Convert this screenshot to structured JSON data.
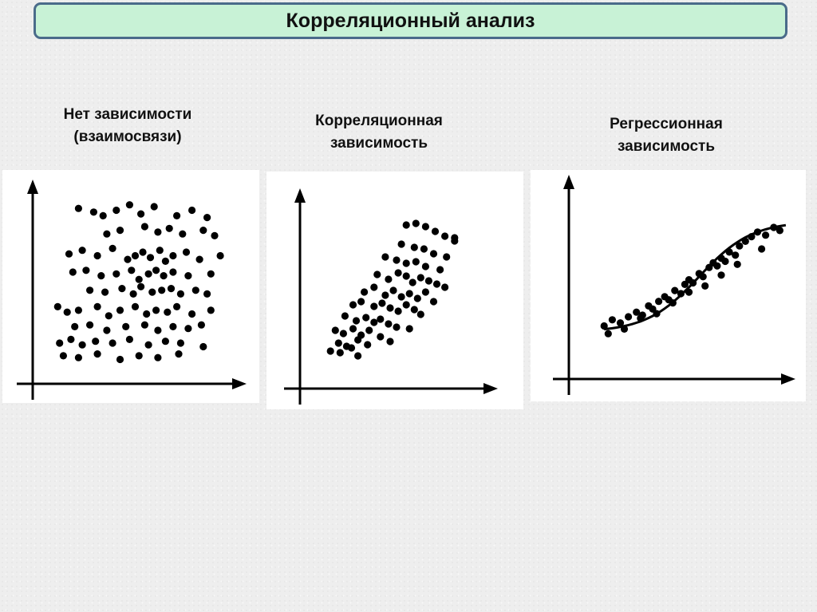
{
  "page": {
    "title": "Корреляционный анализ"
  },
  "colors": {
    "title_bg": "#c8f2d6",
    "title_border": "#4a6b8a",
    "ink": "#000000"
  },
  "chart_data": [
    {
      "type": "scatter",
      "title": "Нет зависимости\n(взаимосвязи)",
      "xlim": [
        0,
        100
      ],
      "ylim": [
        0,
        100
      ],
      "x": [
        20,
        28,
        33,
        40,
        47,
        53,
        60,
        72,
        80,
        88,
        35,
        42,
        55,
        62,
        68,
        75,
        86,
        92,
        15,
        22,
        30,
        38,
        46,
        50,
        54,
        58,
        63,
        66,
        70,
        77,
        84,
        95,
        17,
        24,
        32,
        40,
        48,
        52,
        57,
        61,
        65,
        70,
        78,
        90,
        26,
        34,
        43,
        49,
        53,
        59,
        64,
        69,
        74,
        82,
        88,
        9,
        14,
        20,
        30,
        36,
        42,
        50,
        56,
        61,
        67,
        72,
        80,
        90,
        18,
        26,
        35,
        45,
        55,
        62,
        70,
        78,
        85,
        10,
        16,
        22,
        29,
        38,
        47,
        57,
        66,
        74,
        86,
        12,
        20,
        30,
        42,
        52,
        62,
        73
      ],
      "y": [
        92,
        90,
        88,
        91,
        94,
        89,
        93,
        88,
        91,
        87,
        78,
        80,
        82,
        79,
        81,
        78,
        80,
        77,
        67,
        69,
        66,
        70,
        64,
        66,
        68,
        65,
        69,
        63,
        66,
        68,
        64,
        66,
        57,
        58,
        55,
        56,
        58,
        53,
        56,
        58,
        55,
        57,
        55,
        56,
        47,
        46,
        48,
        45,
        49,
        46,
        47,
        48,
        45,
        47,
        45,
        38,
        35,
        36,
        38,
        33,
        36,
        38,
        34,
        36,
        35,
        38,
        34,
        36,
        27,
        28,
        25,
        27,
        28,
        25,
        27,
        26,
        28,
        18,
        20,
        17,
        19,
        18,
        20,
        17,
        19,
        18,
        16,
        11,
        10,
        12,
        9,
        11,
        10,
        12
      ]
    },
    {
      "type": "scatter",
      "title": "Корреляционная\nзависимость",
      "xlim": [
        0,
        100
      ],
      "ylim": [
        0,
        100
      ],
      "x": [
        58,
        64,
        70,
        76,
        82,
        88,
        88,
        55,
        63,
        69,
        75,
        83,
        45,
        52,
        58,
        64,
        70,
        79,
        40,
        47,
        53,
        58,
        62,
        67,
        72,
        77,
        82,
        32,
        38,
        45,
        50,
        55,
        60,
        65,
        70,
        75,
        25,
        30,
        38,
        43,
        48,
        53,
        58,
        63,
        67,
        20,
        27,
        33,
        38,
        42,
        47,
        52,
        60,
        14,
        19,
        25,
        30,
        35,
        42,
        48,
        16,
        21,
        28,
        34,
        11,
        17,
        24,
        28
      ],
      "y": [
        94,
        95,
        93,
        90,
        87,
        84,
        86,
        82,
        80,
        79,
        76,
        74,
        74,
        72,
        70,
        71,
        68,
        66,
        63,
        60,
        64,
        62,
        58,
        61,
        59,
        57,
        55,
        52,
        55,
        50,
        53,
        49,
        51,
        48,
        52,
        46,
        44,
        46,
        43,
        45,
        42,
        40,
        44,
        41,
        38,
        37,
        34,
        36,
        33,
        35,
        32,
        30,
        29,
        28,
        26,
        29,
        25,
        28,
        24,
        21,
        20,
        18,
        22,
        19,
        15,
        14,
        17,
        12
      ]
    },
    {
      "type": "scatter",
      "title": "Регрессионная\nзависимость",
      "xlim": [
        0,
        100
      ],
      "ylim": [
        0,
        100
      ],
      "x": [
        8,
        12,
        16,
        20,
        24,
        27,
        30,
        32,
        35,
        38,
        40,
        43,
        46,
        48,
        50,
        52,
        55,
        57,
        60,
        62,
        64,
        66,
        68,
        70,
        73,
        75,
        78,
        81,
        84,
        88,
        92,
        95,
        10,
        18,
        26,
        34,
        42,
        50,
        58,
        66,
        74,
        86
      ],
      "y": [
        22,
        26,
        24,
        28,
        31,
        29,
        35,
        33,
        38,
        41,
        39,
        45,
        43,
        49,
        52,
        50,
        56,
        54,
        60,
        63,
        61,
        66,
        64,
        70,
        68,
        74,
        77,
        80,
        83,
        81,
        86,
        84,
        17,
        20,
        27,
        30,
        37,
        44,
        48,
        55,
        62,
        72
      ],
      "series_curve": "fit"
    }
  ]
}
